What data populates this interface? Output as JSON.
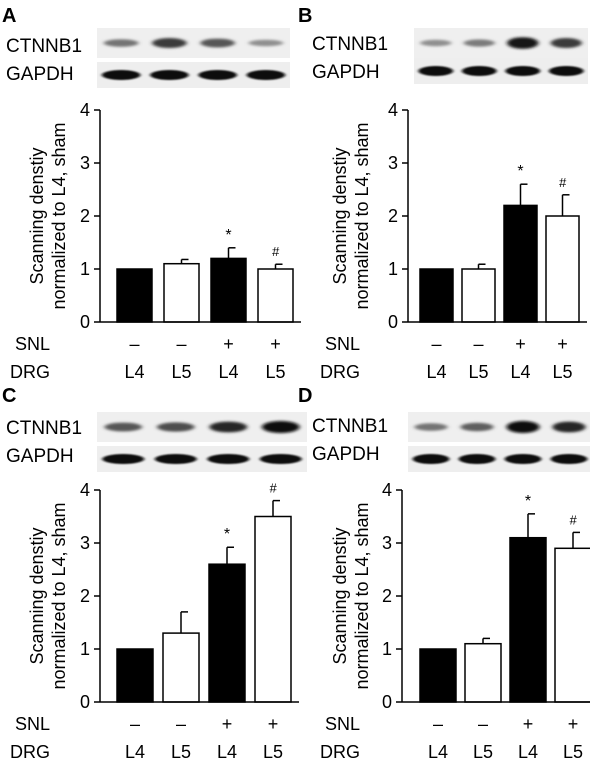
{
  "figure": {
    "rows": {
      "snl_label": "SNL",
      "drg_label": "DRG"
    }
  },
  "chart_data": [
    {
      "panel": "A",
      "type": "bar",
      "blot_labels": [
        "CTNNB1",
        "GAPDH"
      ],
      "ylabel_line1": "Scanning denstiy",
      "ylabel_line2": "normalized to L4, sham",
      "ylim": [
        0,
        4
      ],
      "yticks": [
        "0",
        "1",
        "2",
        "3",
        "4"
      ],
      "snl": [
        "–",
        "–",
        "+",
        "+"
      ],
      "categories": [
        "L4",
        "L5",
        "L4",
        "L5"
      ],
      "values": [
        1.0,
        1.1,
        1.2,
        1.0
      ],
      "errors": [
        0,
        0.08,
        0.2,
        0.09
      ],
      "fills": [
        "#000000",
        "#ffffff",
        "#000000",
        "#ffffff"
      ],
      "marks": [
        "",
        "",
        "*",
        "#"
      ],
      "band_intensity": [
        0.45,
        0.75,
        0.6,
        0.3
      ]
    },
    {
      "panel": "B",
      "type": "bar",
      "blot_labels": [
        "CTNNB1",
        "GAPDH"
      ],
      "ylabel_line1": "Scanning denstiy",
      "ylabel_line2": "normalized to L4, sham",
      "ylim": [
        0,
        4
      ],
      "yticks": [
        "0",
        "1",
        "2",
        "3",
        "4"
      ],
      "snl": [
        "–",
        "–",
        "+",
        "+"
      ],
      "categories": [
        "L4",
        "L5",
        "L4",
        "L5"
      ],
      "values": [
        1.0,
        1.0,
        2.2,
        2.0
      ],
      "errors": [
        0,
        0.09,
        0.4,
        0.4
      ],
      "fills": [
        "#000000",
        "#ffffff",
        "#000000",
        "#ffffff"
      ],
      "marks": [
        "",
        "",
        "*",
        "#"
      ],
      "band_intensity": [
        0.3,
        0.4,
        0.95,
        0.75
      ]
    },
    {
      "panel": "C",
      "type": "bar",
      "blot_labels": [
        "CTNNB1",
        "GAPDH"
      ],
      "ylabel_line1": "Scanning denstiy",
      "ylabel_line2": "normalized to L4, sham",
      "ylim": [
        0,
        4
      ],
      "yticks": [
        "0",
        "1",
        "2",
        "3",
        "4"
      ],
      "snl": [
        "–",
        "–",
        "+",
        "+"
      ],
      "categories": [
        "L4",
        "L5",
        "L4",
        "L5"
      ],
      "values": [
        1.0,
        1.3,
        2.6,
        3.5
      ],
      "errors": [
        0,
        0.4,
        0.32,
        0.3
      ],
      "fills": [
        "#000000",
        "#ffffff",
        "#000000",
        "#ffffff"
      ],
      "marks": [
        "",
        "",
        "*",
        "#"
      ],
      "band_intensity": [
        0.6,
        0.65,
        0.85,
        1.0
      ]
    },
    {
      "panel": "D",
      "type": "bar",
      "blot_labels": [
        "CTNNB1",
        "GAPDH"
      ],
      "ylabel_line1": "Scanning denstiy",
      "ylabel_line2": "normalized to L4, sham",
      "ylim": [
        0,
        4
      ],
      "yticks": [
        "0",
        "1",
        "2",
        "3",
        "4"
      ],
      "snl": [
        "–",
        "–",
        "+",
        "+"
      ],
      "categories": [
        "L4",
        "L5",
        "L4",
        "L5"
      ],
      "values": [
        1.0,
        1.1,
        3.1,
        2.9
      ],
      "errors": [
        0,
        0.1,
        0.45,
        0.3
      ],
      "fills": [
        "#000000",
        "#ffffff",
        "#000000",
        "#ffffff"
      ],
      "marks": [
        "",
        "",
        "*",
        "#"
      ],
      "band_intensity": [
        0.45,
        0.55,
        1.0,
        0.85
      ]
    }
  ]
}
